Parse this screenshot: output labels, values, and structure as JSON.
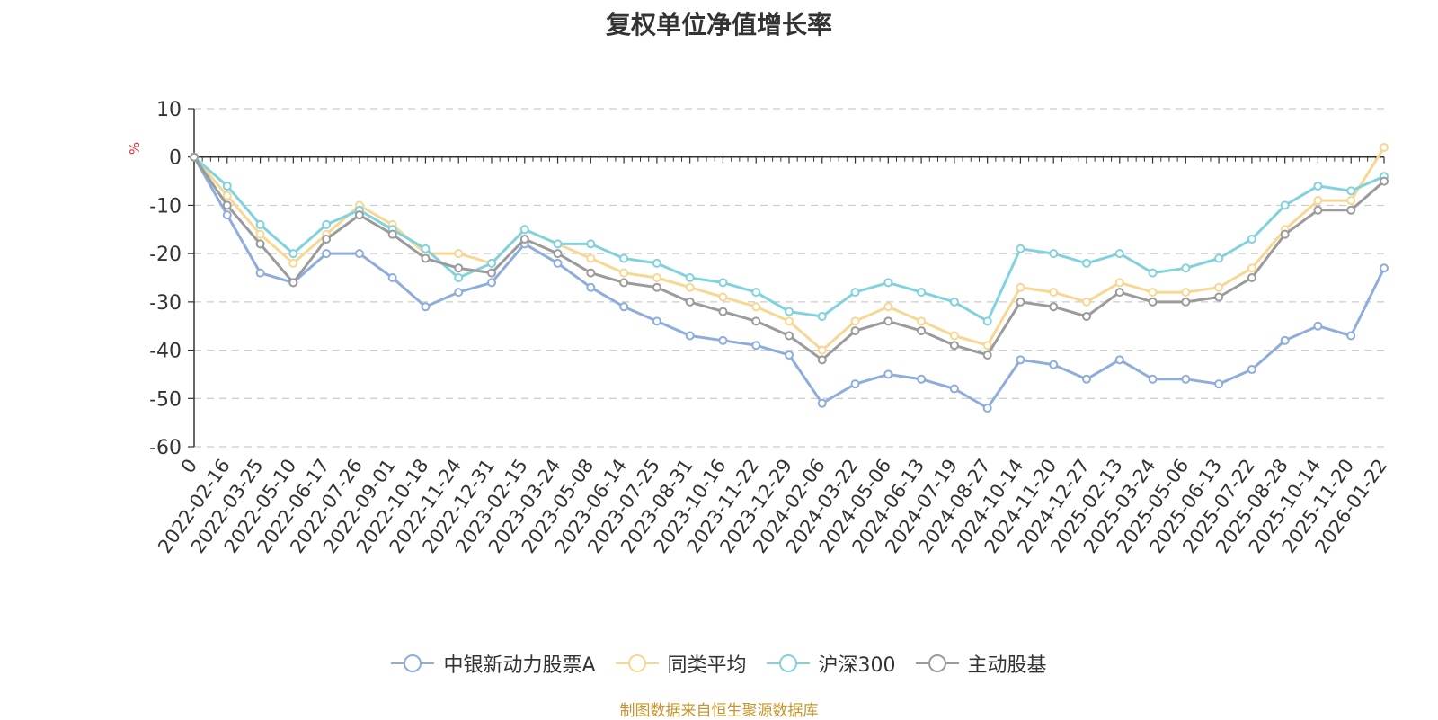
{
  "chart_data": {
    "type": "line",
    "title": "复权单位净值增长率",
    "ylabel": "%",
    "ylim": [
      -60,
      10
    ],
    "yticks": [
      10,
      0,
      -10,
      -20,
      -30,
      -40,
      -50,
      -60
    ],
    "grid": true,
    "legend_position": "bottom",
    "xtick_labels": [
      "0",
      "2022-02-16",
      "2022-03-25",
      "2022-05-10",
      "2022-06-17",
      "2022-07-26",
      "2022-09-01",
      "2022-10-18",
      "2022-11-24",
      "2022-12-31",
      "2023-02-15",
      "2023-03-24",
      "2023-05-08",
      "2023-06-14",
      "2023-07-25",
      "2023-08-31",
      "2023-10-16",
      "2023-11-22",
      "2023-12-29",
      "2024-02-06",
      "2024-03-22",
      "2024-05-06",
      "2024-06-13",
      "2024-07-19",
      "2024-08-27",
      "2024-10-14",
      "2024-11-20",
      "2024-12-27",
      "2025-02-13",
      "2025-03-24",
      "2025-05-06",
      "2025-06-13",
      "2025-07-22",
      "2025-08-28",
      "2025-10-14",
      "2025-11-20",
      "2026-01-22"
    ],
    "x": [
      0,
      1,
      2,
      3,
      4,
      5,
      6,
      7,
      8,
      9,
      10,
      11,
      12,
      13,
      14,
      15,
      16,
      17,
      18,
      19,
      20,
      21,
      22,
      23,
      24,
      25,
      26,
      27,
      28,
      29,
      30,
      31,
      32,
      33,
      34,
      35,
      36
    ],
    "series": [
      {
        "name": "中银新动力股票A",
        "color": "#8eacdc",
        "values": [
          0,
          -12,
          -24,
          -26,
          -20,
          -20,
          -25,
          -31,
          -28,
          -26,
          -18,
          -22,
          -27,
          -31,
          -34,
          -37,
          -38,
          -39,
          -41,
          -51,
          -47,
          -45,
          -46,
          -48,
          -52,
          -42,
          -43,
          -46,
          -42,
          -46,
          -46,
          -47,
          -44,
          -38,
          -35,
          -37,
          -23
        ]
      },
      {
        "name": "同类平均",
        "color": "#f8d793",
        "values": [
          0,
          -8,
          -16,
          -22,
          -16,
          -10,
          -14,
          -20,
          -20,
          -22,
          -15,
          -18,
          -21,
          -24,
          -25,
          -27,
          -29,
          -31,
          -34,
          -40,
          -34,
          -31,
          -34,
          -37,
          -39,
          -27,
          -28,
          -30,
          -26,
          -28,
          -28,
          -27,
          -23,
          -15,
          -9,
          -9,
          2
        ]
      },
      {
        "name": "沪深300",
        "color": "#82d2dd",
        "values": [
          0,
          -6,
          -14,
          -20,
          -14,
          -11,
          -15,
          -19,
          -25,
          -22,
          -15,
          -18,
          -18,
          -21,
          -22,
          -25,
          -26,
          -28,
          -32,
          -33,
          -28,
          -26,
          -28,
          -30,
          -34,
          -19,
          -20,
          -22,
          -20,
          -24,
          -23,
          -21,
          -17,
          -10,
          -6,
          -7,
          -4
        ]
      },
      {
        "name": "主动股基",
        "color": "#9b9b9b",
        "values": [
          0,
          -10,
          -18,
          -26,
          -17,
          -12,
          -16,
          -21,
          -23,
          -24,
          -17,
          -20,
          -24,
          -26,
          -27,
          -30,
          -32,
          -34,
          -37,
          -42,
          -36,
          -34,
          -36,
          -39,
          -41,
          -30,
          -31,
          -33,
          -28,
          -30,
          -30,
          -29,
          -25,
          -16,
          -11,
          -11,
          -5
        ]
      }
    ]
  },
  "source_note": "制图数据来自恒生聚源数据库"
}
